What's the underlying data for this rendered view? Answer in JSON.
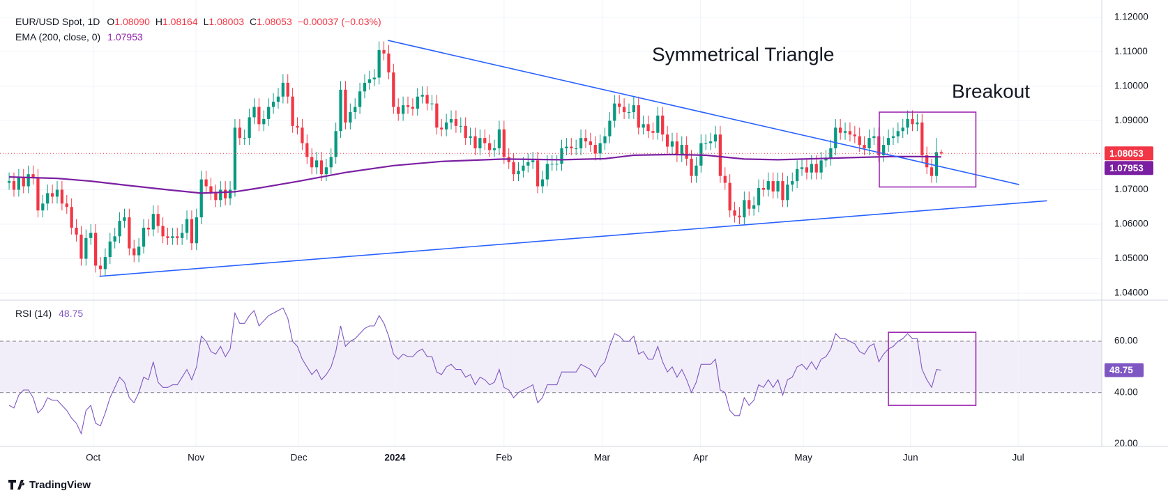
{
  "header": {
    "symbol": "EUR/USD Spot, 1D",
    "ohlc": [
      {
        "key": "O",
        "value": "1.08090"
      },
      {
        "key": "H",
        "value": "1.08164"
      },
      {
        "key": "L",
        "value": "1.08003"
      },
      {
        "key": "C",
        "value": "1.08053"
      }
    ],
    "change": "−0.00037 (−0.03%)",
    "ema_label": "EMA (200, close, 0)",
    "rsi_label": "RSI (14)"
  },
  "chart_data": [
    {
      "type": "candlestick",
      "up_color": "#089981",
      "down_color": "#f23645",
      "xlim": [
        -1.9,
        227.4
      ],
      "ylim": [
        1.038,
        1.125
      ],
      "yticks": [
        {
          "value": 1.04,
          "label": "1.04000"
        },
        {
          "value": 1.05,
          "label": "1.05000"
        },
        {
          "value": 1.06,
          "label": "1.06000"
        },
        {
          "value": 1.07,
          "label": "1.07000"
        },
        {
          "value": 1.08,
          "label": "1.08000"
        },
        {
          "value": 1.09,
          "label": "1.09000"
        },
        {
          "value": 1.1,
          "label": "1.10000"
        },
        {
          "value": 1.11,
          "label": "1.11000"
        },
        {
          "value": 1.12,
          "label": "1.12000"
        }
      ],
      "grid": true,
      "open": [
        1.072,
        1.0725,
        1.07,
        1.0735,
        1.071,
        1.0745,
        1.0735,
        1.064,
        1.066,
        1.069,
        1.068,
        1.07,
        1.066,
        1.065,
        1.059,
        1.057,
        1.05,
        1.056,
        1.0575,
        1.048,
        1.047,
        1.0505,
        1.055,
        1.0565,
        1.061,
        1.062,
        1.053,
        1.051,
        1.0535,
        1.059,
        1.0585,
        1.063,
        1.0595,
        1.0565,
        1.056,
        1.0565,
        1.056,
        1.0575,
        1.0615,
        1.0545,
        1.062,
        1.073,
        1.071,
        1.069,
        1.067,
        1.07,
        1.0675,
        1.07,
        1.088,
        1.085,
        1.085,
        1.091,
        1.094,
        1.089,
        1.0905,
        1.094,
        1.0955,
        1.097,
        1.101,
        1.097,
        1.0885,
        1.088,
        1.0835,
        1.0795,
        1.0765,
        1.0785,
        1.0745,
        1.0765,
        1.0795,
        1.087,
        1.099,
        1.0895,
        1.0925,
        1.094,
        1.0985,
        1.101,
        1.102,
        1.1025,
        1.1105,
        1.1095,
        1.104,
        1.094,
        1.092,
        1.0945,
        1.094,
        1.0935,
        1.097,
        1.0975,
        1.095,
        1.095,
        1.088,
        1.0875,
        1.0895,
        1.0905,
        1.0885,
        1.0885,
        1.085,
        1.0855,
        1.082,
        1.085,
        1.0835,
        1.0815,
        1.082,
        1.0875,
        1.0795,
        1.078,
        1.0745,
        1.0755,
        1.077,
        1.078,
        1.0785,
        1.071,
        1.073,
        1.0775,
        1.0775,
        1.0775,
        1.082,
        1.0825,
        1.082,
        1.082,
        1.085,
        1.084,
        1.083,
        1.0805,
        1.0835,
        1.0855,
        1.09,
        1.095,
        1.094,
        1.0925,
        1.0925,
        1.0945,
        1.088,
        1.089,
        1.087,
        1.0865,
        1.0915,
        1.086,
        1.0825,
        1.084,
        1.08,
        1.083,
        1.079,
        1.074,
        1.077,
        1.0835,
        1.0835,
        1.084,
        1.086,
        1.074,
        1.072,
        1.064,
        1.0625,
        1.062,
        1.067,
        1.0645,
        1.0655,
        1.0705,
        1.07,
        1.0725,
        1.0695,
        1.0725,
        1.067,
        1.0715,
        1.0725,
        1.076,
        1.0765,
        1.075,
        1.0775,
        1.075,
        1.0785,
        1.079,
        1.082,
        1.088,
        1.0865,
        1.087,
        1.086,
        1.0855,
        1.083,
        1.082,
        1.085,
        1.0855,
        1.08,
        1.083,
        1.085,
        1.0855,
        1.087,
        1.088,
        1.0905,
        1.089,
        1.0895,
        1.08,
        1.0765,
        1.074,
        1.0809
      ],
      "high": [
        1.075,
        1.075,
        1.076,
        1.076,
        1.077,
        1.077,
        1.076,
        1.0685,
        1.0715,
        1.0715,
        1.0725,
        1.0725,
        1.0685,
        1.0675,
        1.0615,
        1.0595,
        1.0585,
        1.06,
        1.06,
        1.0505,
        1.053,
        1.0575,
        1.059,
        1.0635,
        1.0645,
        1.0645,
        1.0555,
        1.056,
        1.0615,
        1.0615,
        1.0655,
        1.0655,
        1.062,
        1.059,
        1.059,
        1.059,
        1.06,
        1.064,
        1.064,
        1.0645,
        1.0755,
        1.0755,
        1.0735,
        1.0715,
        1.0725,
        1.0725,
        1.0725,
        1.0905,
        1.0905,
        1.0875,
        1.0935,
        1.0965,
        1.0965,
        1.093,
        1.0965,
        1.098,
        1.0995,
        1.1035,
        1.1035,
        1.0995,
        1.091,
        1.0905,
        1.086,
        1.082,
        1.081,
        1.081,
        1.079,
        1.082,
        1.0895,
        1.1015,
        1.1015,
        1.095,
        1.0965,
        1.101,
        1.1035,
        1.1045,
        1.105,
        1.113,
        1.113,
        1.112,
        1.1065,
        1.0965,
        1.097,
        1.097,
        1.0965,
        1.0995,
        1.1,
        1.1,
        1.0975,
        1.0975,
        1.0905,
        1.092,
        1.093,
        1.093,
        1.091,
        1.091,
        1.088,
        1.088,
        1.0875,
        1.0875,
        1.086,
        1.0845,
        1.09,
        1.09,
        1.082,
        1.0805,
        1.078,
        1.0795,
        1.0805,
        1.081,
        1.081,
        1.0755,
        1.08,
        1.08,
        1.08,
        1.0845,
        1.085,
        1.085,
        1.0845,
        1.0875,
        1.0875,
        1.0865,
        1.0855,
        1.086,
        1.088,
        1.0925,
        1.0975,
        1.0975,
        1.0965,
        1.095,
        1.097,
        1.097,
        1.0915,
        1.0915,
        1.0895,
        1.094,
        1.094,
        1.0885,
        1.0865,
        1.0865,
        1.0855,
        1.0855,
        1.0815,
        1.0795,
        1.086,
        1.086,
        1.0865,
        1.0885,
        1.0885,
        1.0765,
        1.0745,
        1.0665,
        1.065,
        1.0695,
        1.0695,
        1.068,
        1.073,
        1.073,
        1.075,
        1.075,
        1.075,
        1.075,
        1.074,
        1.075,
        1.0785,
        1.079,
        1.079,
        1.08,
        1.08,
        1.081,
        1.0815,
        1.0845,
        1.0905,
        1.0905,
        1.0895,
        1.0895,
        1.0885,
        1.088,
        1.0855,
        1.0875,
        1.088,
        1.088,
        1.0855,
        1.0875,
        1.088,
        1.0895,
        1.0905,
        1.093,
        1.093,
        1.092,
        1.092,
        1.0825,
        1.079,
        1.085,
        1.08164
      ],
      "low": [
        1.07,
        1.068,
        1.068,
        1.069,
        1.069,
        1.0715,
        1.062,
        1.062,
        1.064,
        1.066,
        1.066,
        1.064,
        1.063,
        1.057,
        1.055,
        1.048,
        1.048,
        1.054,
        1.046,
        1.045,
        1.045,
        1.0485,
        1.053,
        1.0545,
        1.059,
        1.051,
        1.049,
        1.049,
        1.0515,
        1.0565,
        1.0565,
        1.0575,
        1.0545,
        1.054,
        1.054,
        1.054,
        1.054,
        1.0555,
        1.0525,
        1.0525,
        1.06,
        1.069,
        1.067,
        1.065,
        1.065,
        1.0655,
        1.0655,
        1.068,
        1.083,
        1.083,
        1.083,
        1.089,
        1.087,
        1.087,
        1.0885,
        1.092,
        1.0935,
        1.095,
        1.095,
        1.0865,
        1.086,
        1.0815,
        1.0775,
        1.0745,
        1.0745,
        1.0725,
        1.0725,
        1.0745,
        1.0775,
        1.085,
        1.0875,
        1.0875,
        1.0905,
        1.092,
        1.0965,
        1.099,
        1.1,
        1.1005,
        1.1075,
        1.102,
        1.092,
        1.09,
        1.09,
        1.092,
        1.0915,
        1.0915,
        1.095,
        1.093,
        1.093,
        1.086,
        1.0855,
        1.0855,
        1.0875,
        1.0865,
        1.0865,
        1.083,
        1.083,
        1.08,
        1.08,
        1.0815,
        1.0795,
        1.0795,
        1.08,
        1.0775,
        1.076,
        1.0725,
        1.0725,
        1.0735,
        1.075,
        1.076,
        1.069,
        1.069,
        1.071,
        1.0755,
        1.0755,
        1.0755,
        1.08,
        1.08,
        1.08,
        1.08,
        1.082,
        1.081,
        1.0785,
        1.0785,
        1.0815,
        1.0835,
        1.088,
        1.092,
        1.0905,
        1.0905,
        1.0905,
        1.086,
        1.086,
        1.085,
        1.0845,
        1.0845,
        1.084,
        1.0805,
        1.0805,
        1.078,
        1.078,
        1.077,
        1.072,
        1.072,
        1.075,
        1.0815,
        1.0815,
        1.082,
        1.072,
        1.07,
        1.062,
        1.0605,
        1.06,
        1.06,
        1.0625,
        1.0625,
        1.0635,
        1.068,
        1.068,
        1.0675,
        1.0675,
        1.065,
        1.065,
        1.0695,
        1.0705,
        1.074,
        1.073,
        1.073,
        1.073,
        1.073,
        1.0765,
        1.077,
        1.08,
        1.0845,
        1.0845,
        1.084,
        1.0835,
        1.081,
        1.08,
        1.08,
        1.083,
        1.078,
        1.078,
        1.081,
        1.083,
        1.0835,
        1.085,
        1.086,
        1.087,
        1.087,
        1.078,
        1.0745,
        1.072,
        1.072,
        1.08003
      ],
      "close": [
        1.0725,
        1.07,
        1.0735,
        1.071,
        1.0745,
        1.0735,
        1.064,
        1.066,
        1.069,
        1.068,
        1.07,
        1.066,
        1.065,
        1.059,
        1.057,
        1.05,
        1.056,
        1.0575,
        1.048,
        1.047,
        1.0505,
        1.055,
        1.0565,
        1.061,
        1.062,
        1.053,
        1.051,
        1.0535,
        1.059,
        1.0585,
        1.063,
        1.0595,
        1.0565,
        1.056,
        1.0565,
        1.056,
        1.0575,
        1.0615,
        1.0545,
        1.062,
        1.073,
        1.071,
        1.069,
        1.067,
        1.07,
        1.0675,
        1.07,
        1.088,
        1.085,
        1.085,
        1.091,
        1.094,
        1.089,
        1.0905,
        1.094,
        1.0955,
        1.097,
        1.101,
        1.097,
        1.0885,
        1.088,
        1.0835,
        1.0795,
        1.0765,
        1.0785,
        1.0745,
        1.0765,
        1.0795,
        1.087,
        1.099,
        1.0895,
        1.0925,
        1.094,
        1.0985,
        1.101,
        1.102,
        1.1025,
        1.1105,
        1.1095,
        1.104,
        1.094,
        1.092,
        1.0945,
        1.094,
        1.0935,
        1.097,
        1.0975,
        1.095,
        1.095,
        1.088,
        1.0875,
        1.0895,
        1.0905,
        1.0885,
        1.0885,
        1.085,
        1.0855,
        1.082,
        1.085,
        1.0835,
        1.0815,
        1.082,
        1.0875,
        1.0795,
        1.078,
        1.0745,
        1.0755,
        1.077,
        1.078,
        1.0785,
        1.071,
        1.073,
        1.0775,
        1.0775,
        1.0775,
        1.082,
        1.0825,
        1.082,
        1.082,
        1.085,
        1.084,
        1.083,
        1.0805,
        1.0835,
        1.0855,
        1.09,
        1.095,
        1.094,
        1.0925,
        1.0925,
        1.0945,
        1.088,
        1.089,
        1.087,
        1.0865,
        1.0915,
        1.086,
        1.0825,
        1.084,
        1.08,
        1.083,
        1.079,
        1.074,
        1.077,
        1.0835,
        1.0835,
        1.084,
        1.086,
        1.074,
        1.072,
        1.064,
        1.0625,
        1.062,
        1.067,
        1.0645,
        1.0655,
        1.0705,
        1.07,
        1.0725,
        1.0695,
        1.0725,
        1.067,
        1.0715,
        1.0725,
        1.076,
        1.0765,
        1.075,
        1.0775,
        1.075,
        1.0785,
        1.079,
        1.082,
        1.088,
        1.0865,
        1.087,
        1.086,
        1.0855,
        1.083,
        1.082,
        1.085,
        1.0855,
        1.08,
        1.083,
        1.085,
        1.0855,
        1.087,
        1.088,
        1.0905,
        1.089,
        1.0895,
        1.08,
        1.0765,
        1.074,
        1.0809,
        1.08053
      ],
      "ema": {
        "color": "#7b1fa2",
        "x": [
          0,
          10,
          17,
          25,
          33,
          40,
          47,
          52,
          60,
          70,
          80,
          90,
          103,
          115,
          124,
          130,
          138,
          145,
          153,
          160,
          168,
          175,
          183,
          190,
          194
        ],
        "values": [
          1.0737,
          1.0733,
          1.0725,
          1.0712,
          1.07,
          1.069,
          1.0694,
          1.0705,
          1.0724,
          1.075,
          1.077,
          1.0782,
          1.0789,
          1.0787,
          1.079,
          1.08,
          1.0802,
          1.08,
          1.0789,
          1.0787,
          1.079,
          1.0793,
          1.0796,
          1.0796,
          1.07953
        ]
      },
      "annotations": {
        "color": "#2962ff",
        "box_color": "#9c27b0",
        "text_color": "#e91e63",
        "lines": [
          {
            "x": [
              78.8,
              210.2
            ],
            "y": [
              1.1133,
              1.0715
            ]
          },
          {
            "x": [
              18.8,
              216
            ],
            "y": [
              1.0449,
              1.0668
            ]
          }
        ],
        "boxes": [
          {
            "x": [
              181.1,
              201.2
            ],
            "y": [
              1.0708,
              1.0925
            ]
          }
        ],
        "texts": [
          "Symmetrical Triangle",
          "Breakout"
        ]
      }
    },
    {
      "type": "line",
      "color": "#7e57c2",
      "band": [
        40,
        60
      ],
      "box_color": "#9c27b0",
      "xlim": [
        -1.9,
        227.4
      ],
      "ylim": [
        19,
        75.5
      ],
      "yticks": [
        {
          "value": 20,
          "label": "20.00"
        },
        {
          "value": 40,
          "label": "40.00"
        },
        {
          "value": 60,
          "label": "60.00"
        }
      ],
      "xticks": [
        {
          "value": 17.5,
          "label": "Oct"
        },
        {
          "value": 38.9,
          "label": "Nov"
        },
        {
          "value": 60.3,
          "label": "Dec"
        },
        {
          "value": 80.3,
          "label": "2024"
        },
        {
          "value": 103,
          "label": "Feb"
        },
        {
          "value": 123.4,
          "label": "Mar"
        },
        {
          "value": 143.9,
          "label": "Apr"
        },
        {
          "value": 165.3,
          "label": "May"
        },
        {
          "value": 187.6,
          "label": "Jun"
        },
        {
          "value": 210,
          "label": "Jul"
        }
      ],
      "boxes": [
        {
          "x": [
            183,
            201.2
          ],
          "y": [
            35,
            63.5
          ]
        }
      ],
      "values": [
        35,
        34,
        39,
        41,
        41,
        38,
        32,
        34,
        38,
        37,
        37,
        35,
        33,
        30,
        28,
        24,
        33,
        35,
        28,
        27,
        32,
        38,
        42,
        46,
        44,
        38,
        36,
        40,
        46,
        45,
        52,
        44,
        42,
        42,
        43,
        43,
        46,
        49,
        45,
        50,
        62,
        60,
        56,
        55,
        58,
        54,
        57,
        71,
        67,
        67,
        70,
        72,
        66,
        68,
        70,
        71,
        72,
        73,
        69,
        60,
        58,
        53,
        50,
        47,
        49,
        45,
        47,
        50,
        56,
        66,
        58,
        60,
        61,
        63,
        65,
        66,
        66,
        70,
        67,
        62,
        55,
        53,
        55,
        54,
        54,
        56,
        57,
        54,
        54,
        48,
        47,
        50,
        51,
        49,
        49,
        46,
        47,
        43,
        46,
        45,
        43,
        44,
        49,
        42,
        41,
        38,
        40,
        41,
        42,
        43,
        36,
        38,
        43,
        43,
        43,
        48,
        48,
        48,
        48,
        51,
        50,
        49,
        46,
        50,
        52,
        58,
        63,
        62,
        60,
        60,
        62,
        55,
        56,
        53,
        53,
        58,
        52,
        48,
        50,
        46,
        49,
        45,
        40,
        44,
        51,
        51,
        51,
        53,
        41,
        40,
        33,
        31,
        31,
        38,
        35,
        37,
        43,
        42,
        45,
        42,
        45,
        39,
        45,
        46,
        50,
        51,
        49,
        52,
        49,
        53,
        54,
        57,
        63,
        61,
        61,
        60,
        59,
        56,
        55,
        58,
        59,
        52,
        55,
        57,
        58,
        60,
        61,
        63,
        61,
        61,
        49,
        45,
        42,
        49,
        48.75
      ]
    }
  ],
  "footer": {
    "brand": "TradingView"
  }
}
